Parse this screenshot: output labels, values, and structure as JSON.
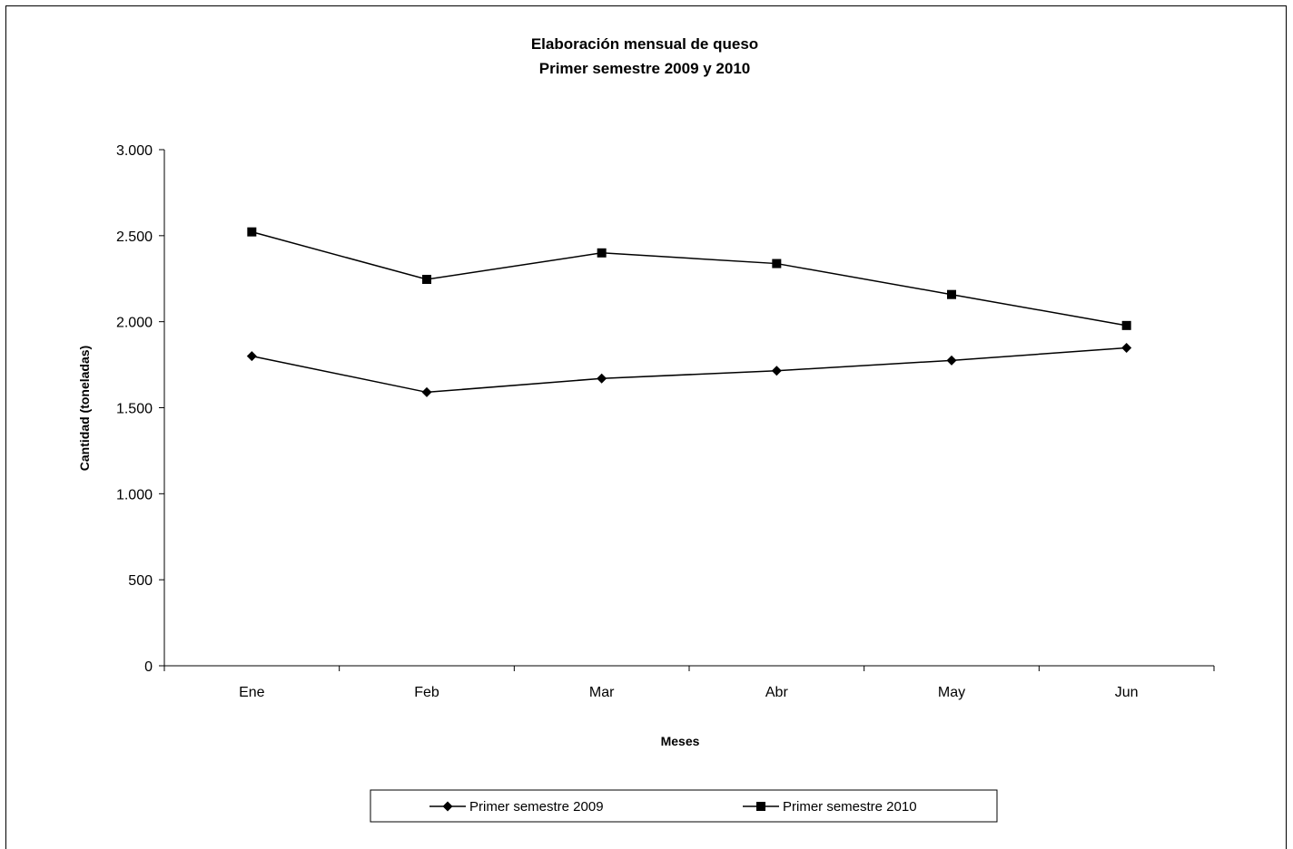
{
  "chart_data": {
    "type": "line",
    "title": "Elaboración mensual de queso",
    "subtitle": "Primer semestre 2009 y 2010",
    "xlabel": "Meses",
    "ylabel": "Cantidad (toneladas)",
    "categories": [
      "Ene",
      "Feb",
      "Mar",
      "Abr",
      "May",
      "Jun"
    ],
    "ylim": [
      0,
      3000
    ],
    "yticks": [
      0,
      500,
      1000,
      1500,
      2000,
      2500,
      3000
    ],
    "ytick_labels": [
      "0",
      "500",
      "1.000",
      "1.500",
      "2.000",
      "2.500",
      "3.000"
    ],
    "grid": false,
    "legend_position": "bottom",
    "series": [
      {
        "name": "Primer semestre 2009",
        "marker": "diamond",
        "color": "#000000",
        "values": [
          1800,
          1590,
          1670,
          1715,
          1775,
          1848
        ]
      },
      {
        "name": "Primer semestre 2010",
        "marker": "square",
        "color": "#000000",
        "values": [
          2522,
          2246,
          2400,
          2338,
          2158,
          1978
        ]
      }
    ]
  }
}
